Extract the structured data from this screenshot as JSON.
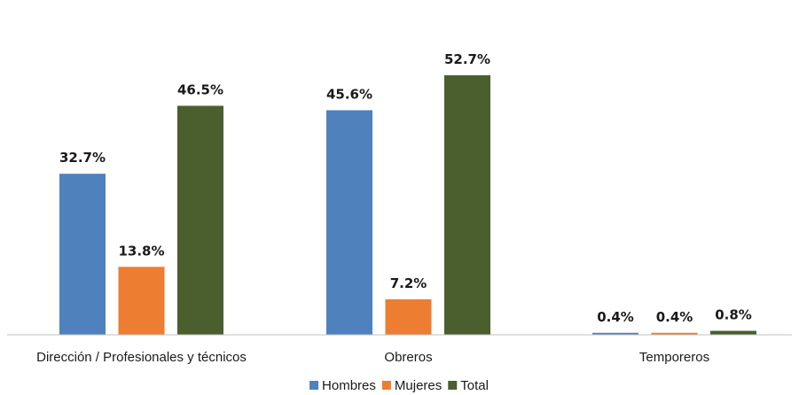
{
  "chart_data": {
    "type": "bar",
    "categories": [
      "Dirección / Profesionales y técnicos",
      "Obreros",
      "Temporeros"
    ],
    "series": [
      {
        "name": "Hombres",
        "color": "#4f81bd",
        "values": [
          32.7,
          45.6,
          0.4
        ],
        "labels": [
          "32.7%",
          "45.6%",
          "0.4%"
        ]
      },
      {
        "name": "Mujeres",
        "color": "#ed7d31",
        "values": [
          13.8,
          7.2,
          0.4
        ],
        "labels": [
          "13.8%",
          "7.2%",
          "0.4%"
        ]
      },
      {
        "name": "Total",
        "color": "#4a5e2e",
        "values": [
          46.5,
          52.7,
          0.8
        ],
        "labels": [
          "46.5%",
          "52.7%",
          "0.8%"
        ]
      }
    ],
    "unit": "%",
    "ylim": [
      0,
      60
    ],
    "grid": false,
    "legend_position": "bottom"
  }
}
